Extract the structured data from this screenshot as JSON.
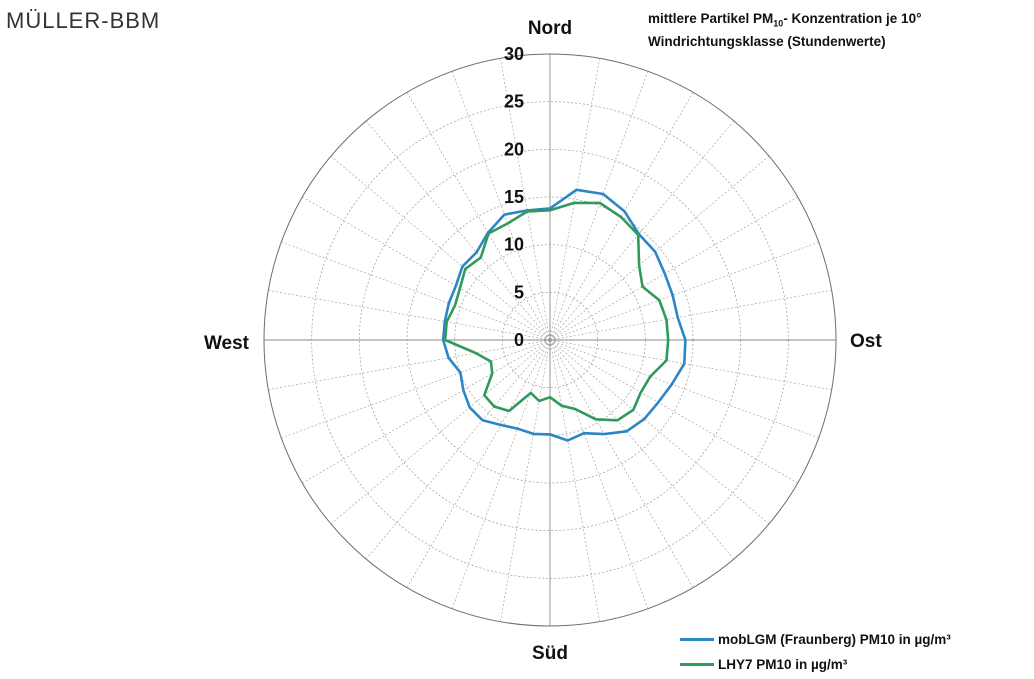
{
  "logo": "MÜLLER-BBM",
  "title": {
    "line1_pre": "mittlere Partikel PM",
    "line1_sub": "10",
    "line1_post": "- Konzentration je 10°",
    "line2": "Windrichtungsklasse (Stundenwerte)"
  },
  "colors": {
    "series1": "#2b86c5",
    "series2": "#2f9a5a",
    "grid": "#9a9a9a"
  },
  "chart_data": {
    "type": "radar",
    "direction_labels": [
      "Nord",
      "Ost",
      "Süd",
      "West"
    ],
    "r_ticks": [
      "0",
      "5",
      "10",
      "15",
      "20",
      "25",
      "30"
    ],
    "rlim": [
      0,
      30
    ],
    "angle_step_deg": 10,
    "angles_deg": [
      0,
      10,
      20,
      30,
      40,
      50,
      60,
      70,
      80,
      90,
      100,
      110,
      120,
      130,
      140,
      150,
      160,
      170,
      180,
      190,
      200,
      210,
      220,
      230,
      240,
      250,
      260,
      270,
      280,
      290,
      300,
      310,
      320,
      330,
      340,
      350
    ],
    "series": [
      {
        "name": "mobLGM (Fraunberg) PM10 in µg/m³",
        "values": [
          13.8,
          16.0,
          16.3,
          15.6,
          14.5,
          14.4,
          13.9,
          13.7,
          13.6,
          14.2,
          14.3,
          13.6,
          13.1,
          12.9,
          12.5,
          11.4,
          10.4,
          10.7,
          9.9,
          10.0,
          9.9,
          10.3,
          11.0,
          11.0,
          10.5,
          10.0,
          10.8,
          11.2,
          11.2,
          11.3,
          11.4,
          12.0,
          12.0,
          13.0,
          14.0,
          13.8
        ]
      },
      {
        "name": "LHY7 PM10 in µg/m³",
        "values": [
          13.6,
          14.6,
          15.3,
          14.9,
          14.4,
          12.2,
          11.2,
          12.2,
          12.4,
          12.4,
          12.4,
          11.2,
          11.0,
          11.4,
          11.0,
          9.6,
          7.7,
          7.0,
          6.0,
          6.5,
          5.9,
          8.6,
          9.1,
          9.0,
          7.0,
          6.6,
          7.9,
          11.0,
          11.0,
          10.6,
          10.9,
          11.6,
          11.3,
          12.9,
          13.0,
          13.7
        ]
      }
    ],
    "title": "mittlere Partikel PM10- Konzentration je 10° Windrichtungsklasse (Stundenwerte)",
    "legend_position": "bottom-right",
    "grid": true
  }
}
